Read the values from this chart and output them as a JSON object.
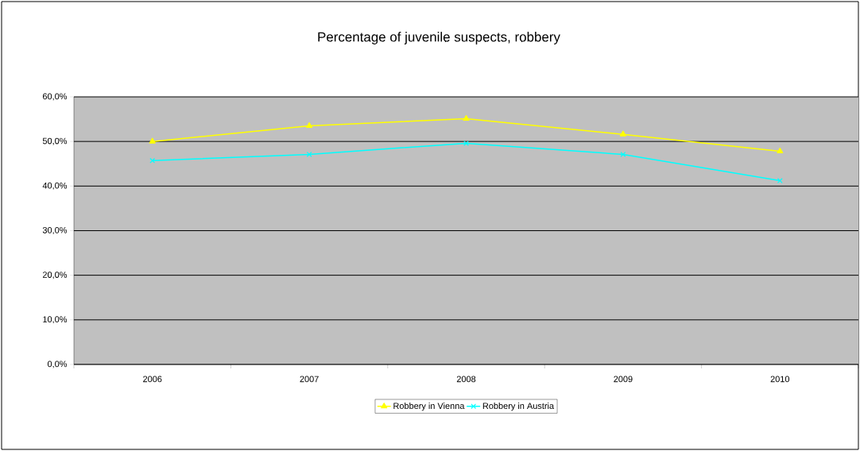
{
  "chart_data": {
    "type": "line",
    "title": "Percentage of juvenile suspects, robbery",
    "categories": [
      "2006",
      "2007",
      "2008",
      "2009",
      "2010"
    ],
    "series": [
      {
        "name": "Robbery in Vienna",
        "color": "#ffff00",
        "marker": "triangle",
        "values": [
          50.0,
          53.5,
          55.1,
          51.6,
          47.8
        ]
      },
      {
        "name": "Robbery in Austria",
        "color": "#00ffff",
        "marker": "cross",
        "values": [
          45.7,
          47.1,
          49.6,
          47.1,
          41.2
        ]
      }
    ],
    "ylim": [
      0,
      60
    ],
    "yticks": [
      {
        "value": 0,
        "label": "0,0%"
      },
      {
        "value": 10,
        "label": "10,0%"
      },
      {
        "value": 20,
        "label": "20,0%"
      },
      {
        "value": 30,
        "label": "30,0%"
      },
      {
        "value": 40,
        "label": "40,0%"
      },
      {
        "value": 50,
        "label": "50,0%"
      },
      {
        "value": 60,
        "label": "60,0%"
      }
    ],
    "grid": "y",
    "legend": "bottom",
    "line_style": "solid"
  }
}
